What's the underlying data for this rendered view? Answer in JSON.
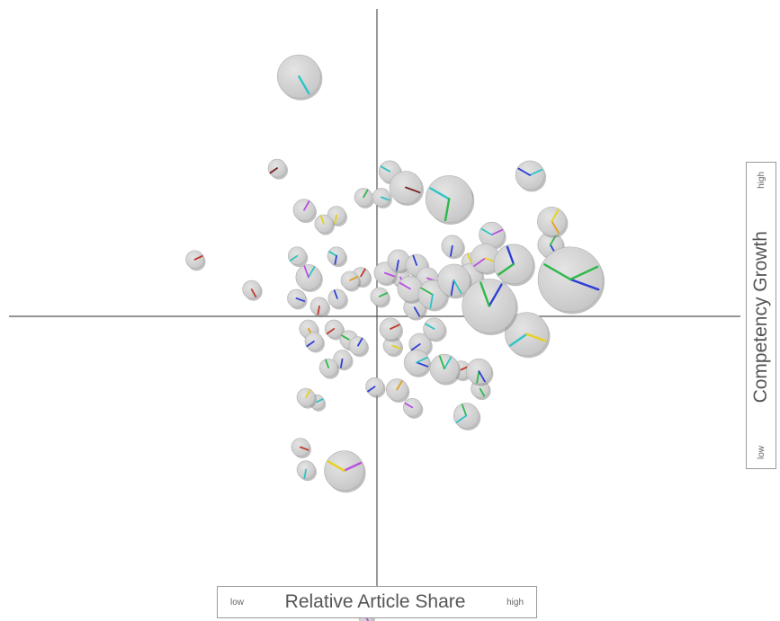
{
  "chart_data": {
    "type": "scatter",
    "title": "",
    "xlabel": "Relative Article Share",
    "ylabel": "Competency Growth",
    "x_low_label": "low",
    "x_high_label": "high",
    "y_low_label": "low",
    "y_high_label": "high",
    "xlim": [
      -1,
      1
    ],
    "ylim": [
      -1,
      1
    ],
    "grid": false,
    "legend": "none",
    "marker": "pie-bubble",
    "colors": {
      "bubble_fill": "#d4d4d4",
      "bubble_shadow": "#8a8a8a",
      "axis_line": "#555555",
      "spokes": [
        "#2ec4c4",
        "#2f3fd6",
        "#2db84a",
        "#e6d11e",
        "#b84fe0",
        "#c0392b",
        "#e0a01a",
        "#7a1f1f"
      ]
    },
    "points": [
      {
        "x": -0.214,
        "y": 0.785,
        "size": 24,
        "spokes": [
          0
        ]
      },
      {
        "x": -0.274,
        "y": 0.485,
        "size": 10,
        "spokes": [
          7
        ]
      },
      {
        "x": 0.035,
        "y": 0.474,
        "size": 12,
        "spokes": [
          0
        ]
      },
      {
        "x": 0.079,
        "y": 0.422,
        "size": 18,
        "spokes": [
          7
        ]
      },
      {
        "x": 0.198,
        "y": 0.384,
        "size": 26,
        "spokes": [
          0,
          2
        ]
      },
      {
        "x": 0.235,
        "y": 0.402,
        "size": 10,
        "spokes": [
          4
        ]
      },
      {
        "x": 0.42,
        "y": 0.462,
        "size": 16,
        "spokes": [
          0,
          1
        ]
      },
      {
        "x": -0.037,
        "y": 0.39,
        "size": 10,
        "spokes": [
          2
        ]
      },
      {
        "x": 0.012,
        "y": 0.39,
        "size": 10,
        "spokes": [
          0
        ]
      },
      {
        "x": -0.2,
        "y": 0.348,
        "size": 12,
        "spokes": [
          4
        ]
      },
      {
        "x": -0.111,
        "y": 0.331,
        "size": 10,
        "spokes": [
          3
        ]
      },
      {
        "x": -0.146,
        "y": 0.303,
        "size": 10,
        "spokes": [
          3
        ]
      },
      {
        "x": 0.48,
        "y": 0.311,
        "size": 16,
        "spokes": [
          6,
          3
        ]
      },
      {
        "x": 0.315,
        "y": 0.267,
        "size": 14,
        "spokes": [
          4,
          0
        ]
      },
      {
        "x": 0.476,
        "y": 0.234,
        "size": 14,
        "spokes": [
          1,
          2
        ]
      },
      {
        "x": 0.531,
        "y": 0.121,
        "size": 36,
        "spokes": [
          1,
          2,
          2
        ]
      },
      {
        "x": 0.375,
        "y": 0.171,
        "size": 22,
        "spokes": [
          1,
          2
        ]
      },
      {
        "x": 0.297,
        "y": 0.19,
        "size": 16,
        "spokes": [
          4,
          3
        ]
      },
      {
        "x": 0.255,
        "y": 0.131,
        "size": 14,
        "spokes": [
          3
        ]
      },
      {
        "x": 0.211,
        "y": 0.118,
        "size": 18,
        "spokes": [
          1,
          0
        ]
      },
      {
        "x": 0.308,
        "y": 0.034,
        "size": 30,
        "spokes": [
          1,
          2
        ]
      },
      {
        "x": 0.411,
        "y": -0.058,
        "size": 24,
        "spokes": [
          0,
          3
        ]
      },
      {
        "x": 0.153,
        "y": 0.071,
        "size": 16,
        "spokes": [
          2,
          0
        ]
      },
      {
        "x": 0.091,
        "y": 0.09,
        "size": 14,
        "spokes": [
          4
        ]
      },
      {
        "x": 0.022,
        "y": 0.142,
        "size": 12,
        "spokes": [
          4
        ]
      },
      {
        "x": 0.059,
        "y": 0.183,
        "size": 12,
        "spokes": [
          1
        ]
      },
      {
        "x": 0.109,
        "y": 0.168,
        "size": 12,
        "spokes": [
          1
        ]
      },
      {
        "x": -0.5,
        "y": 0.186,
        "size": 10,
        "spokes": [
          5
        ]
      },
      {
        "x": -0.344,
        "y": 0.088,
        "size": 10,
        "spokes": [
          5
        ]
      },
      {
        "x": -0.219,
        "y": 0.198,
        "size": 10,
        "spokes": [
          0
        ]
      },
      {
        "x": -0.188,
        "y": 0.128,
        "size": 14,
        "spokes": [
          0,
          4
        ]
      },
      {
        "x": -0.111,
        "y": 0.198,
        "size": 10,
        "spokes": [
          0,
          1
        ]
      },
      {
        "x": -0.044,
        "y": 0.131,
        "size": 10,
        "spokes": [
          5
        ]
      },
      {
        "x": -0.221,
        "y": 0.059,
        "size": 10,
        "spokes": [
          1
        ]
      },
      {
        "x": -0.158,
        "y": 0.033,
        "size": 10,
        "spokes": [
          5
        ]
      },
      {
        "x": -0.109,
        "y": 0.059,
        "size": 10,
        "spokes": [
          1
        ]
      },
      {
        "x": 0.007,
        "y": 0.065,
        "size": 10,
        "spokes": [
          2
        ]
      },
      {
        "x": 0.037,
        "y": -0.041,
        "size": 12,
        "spokes": [
          5
        ]
      },
      {
        "x": 0.103,
        "y": 0.029,
        "size": 12,
        "spokes": [
          1
        ]
      },
      {
        "x": -0.188,
        "y": -0.041,
        "size": 10,
        "spokes": [
          6
        ]
      },
      {
        "x": -0.118,
        "y": -0.041,
        "size": 10,
        "spokes": [
          5
        ]
      },
      {
        "x": -0.077,
        "y": -0.076,
        "size": 10,
        "spokes": [
          2
        ]
      },
      {
        "x": -0.052,
        "y": -0.096,
        "size": 10,
        "spokes": [
          1
        ]
      },
      {
        "x": 0.042,
        "y": -0.096,
        "size": 10,
        "spokes": [
          3
        ]
      },
      {
        "x": 0.118,
        "y": -0.091,
        "size": 12,
        "spokes": [
          1
        ]
      },
      {
        "x": 0.157,
        "y": -0.041,
        "size": 12,
        "spokes": [
          0
        ]
      },
      {
        "x": -0.095,
        "y": -0.14,
        "size": 10,
        "spokes": [
          1
        ]
      },
      {
        "x": -0.133,
        "y": -0.168,
        "size": 10,
        "spokes": [
          2
        ]
      },
      {
        "x": 0.109,
        "y": -0.151,
        "size": 14,
        "spokes": [
          1,
          0
        ]
      },
      {
        "x": 0.185,
        "y": -0.171,
        "size": 16,
        "spokes": [
          0,
          2
        ]
      },
      {
        "x": 0.28,
        "y": -0.18,
        "size": 14,
        "spokes": [
          2,
          1
        ]
      },
      {
        "x": 0.231,
        "y": -0.175,
        "size": 10,
        "spokes": [
          5
        ]
      },
      {
        "x": 0.283,
        "y": -0.237,
        "size": 10,
        "spokes": [
          2
        ]
      },
      {
        "x": -0.006,
        "y": -0.23,
        "size": 10,
        "spokes": [
          1
        ]
      },
      {
        "x": 0.055,
        "y": -0.24,
        "size": 12,
        "spokes": [
          6
        ]
      },
      {
        "x": 0.097,
        "y": -0.298,
        "size": 10,
        "spokes": [
          4
        ]
      },
      {
        "x": 0.245,
        "y": -0.325,
        "size": 14,
        "spokes": [
          2,
          0
        ]
      },
      {
        "x": -0.195,
        "y": -0.265,
        "size": 10,
        "spokes": [
          3
        ]
      },
      {
        "x": -0.165,
        "y": -0.28,
        "size": 8,
        "spokes": [
          0
        ]
      },
      {
        "x": -0.21,
        "y": -0.428,
        "size": 10,
        "spokes": [
          5
        ]
      },
      {
        "x": -0.195,
        "y": -0.502,
        "size": 10,
        "spokes": [
          0
        ]
      },
      {
        "x": -0.09,
        "y": -0.505,
        "size": 22,
        "spokes": [
          4,
          3
        ]
      },
      {
        "x": -0.03,
        "y": -0.985,
        "size": 8,
        "spokes": [
          4
        ]
      },
      {
        "x": 0.138,
        "y": 0.125,
        "size": 12,
        "spokes": [
          4
        ]
      },
      {
        "x": 0.207,
        "y": 0.23,
        "size": 12,
        "spokes": [
          1
        ]
      },
      {
        "x": 0.257,
        "y": 0.178,
        "size": 10,
        "spokes": [
          3
        ]
      },
      {
        "x": 0.334,
        "y": 0.079,
        "size": 12,
        "spokes": [
          1
        ]
      },
      {
        "x": -0.074,
        "y": 0.118,
        "size": 10,
        "spokes": [
          6
        ]
      },
      {
        "x": 0.064,
        "y": 0.128,
        "size": 10,
        "spokes": [
          4
        ]
      },
      {
        "x": -0.173,
        "y": -0.082,
        "size": 10,
        "spokes": [
          1
        ]
      }
    ]
  }
}
